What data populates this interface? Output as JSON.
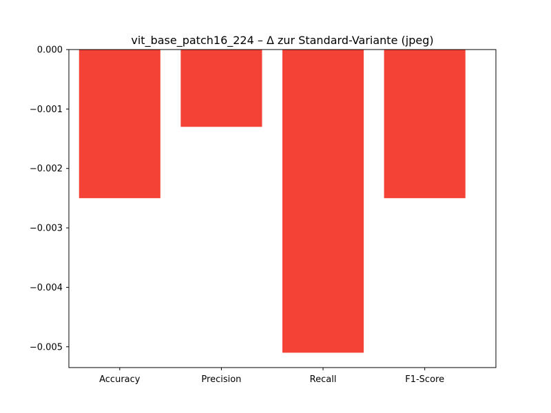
{
  "chart_data": {
    "type": "bar",
    "title": "vit_base_patch16_224 – Δ zur Standard-Variante (jpeg)",
    "xlabel": "",
    "ylabel": "",
    "categories": [
      "Accuracy",
      "Precision",
      "Recall",
      "F1-Score"
    ],
    "values": [
      -0.0025,
      -0.0013,
      -0.0051,
      -0.0025
    ],
    "ylim": [
      -0.00535,
      0.0
    ],
    "yticks": [
      0.0,
      -0.001,
      -0.002,
      -0.003,
      -0.004,
      -0.005
    ],
    "ytick_labels": [
      "0.000",
      "−0.001",
      "−0.002",
      "−0.003",
      "−0.004",
      "−0.005"
    ],
    "bar_color": "#f44336",
    "grid": false,
    "legend": "none"
  }
}
